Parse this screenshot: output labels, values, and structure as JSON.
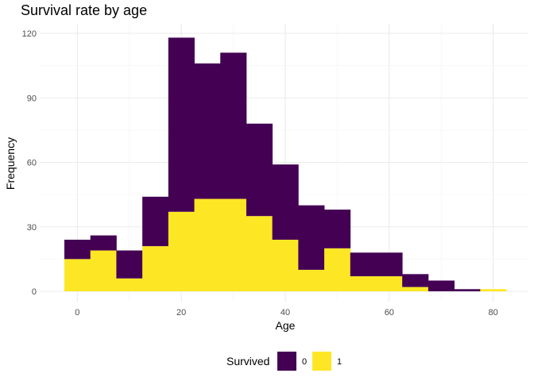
{
  "chart_data": {
    "type": "bar",
    "title": "Survival rate by age",
    "xlabel": "Age",
    "ylabel": "Frequency",
    "xlim": [
      -2.5,
      82.5
    ],
    "ylim": [
      0,
      120
    ],
    "xticks": [
      0,
      20,
      40,
      60,
      80
    ],
    "yticks": [
      0,
      30,
      60,
      90,
      120
    ],
    "bin_width": 5,
    "bins": [
      0,
      5,
      10,
      15,
      20,
      25,
      30,
      35,
      40,
      45,
      50,
      55,
      60,
      65,
      70,
      75,
      80
    ],
    "stacked": true,
    "series": [
      {
        "name": "0",
        "color": "#440154",
        "values": [
          9,
          7,
          13,
          23,
          81,
          63,
          68,
          43,
          35,
          30,
          18,
          11,
          11,
          6,
          5,
          1,
          0
        ]
      },
      {
        "name": "1",
        "color": "#FDE725",
        "values": [
          15,
          19,
          6,
          21,
          37,
          43,
          43,
          35,
          24,
          10,
          20,
          7,
          7,
          2,
          0,
          0,
          1
        ]
      }
    ],
    "grid": true,
    "legend": {
      "title": "Survived",
      "position": "bottom"
    }
  }
}
